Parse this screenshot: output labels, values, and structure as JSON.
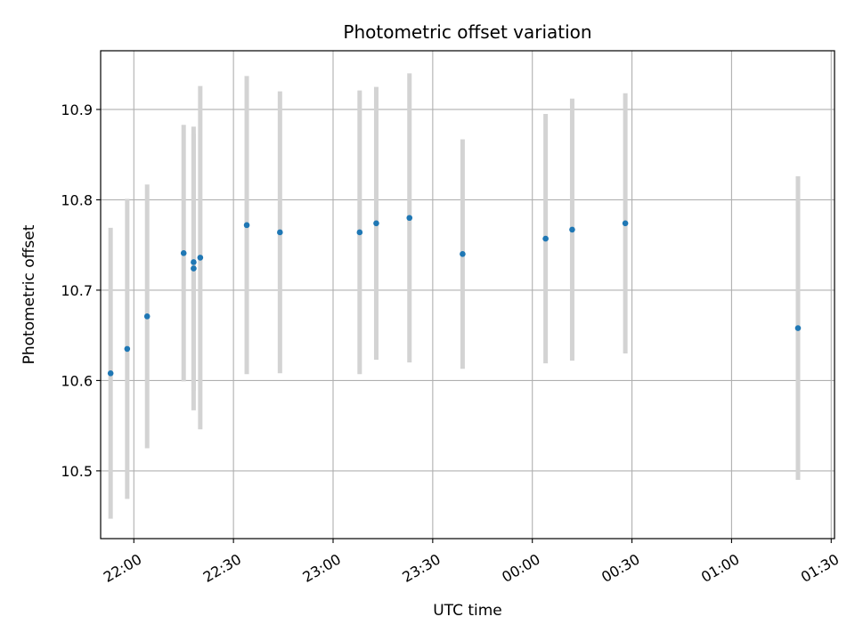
{
  "chart_data": {
    "type": "scatter",
    "title": "Photometric offset variation",
    "xlabel": "UTC time",
    "ylabel": "Photometric offset",
    "grid": true,
    "x_axis": "time",
    "xlim": [
      "21:50",
      "01:31"
    ],
    "ylim": [
      10.425,
      10.965
    ],
    "yticks": [
      10.5,
      10.6,
      10.7,
      10.8,
      10.9
    ],
    "xticks": [
      {
        "time": "22:00",
        "label": "22:00"
      },
      {
        "time": "22:30",
        "label": "22:30"
      },
      {
        "time": "23:00",
        "label": "23:00"
      },
      {
        "time": "23:30",
        "label": "23:30"
      },
      {
        "time": "00:00",
        "label": "00:00"
      },
      {
        "time": "00:30",
        "label": "00:30"
      },
      {
        "time": "01:00",
        "label": "01:00"
      },
      {
        "time": "01:30",
        "label": "01:30"
      }
    ],
    "marker_color": "#1f77b4",
    "errorbar_color": "#d3d3d3",
    "points": [
      {
        "x": "21:53",
        "y": 10.608,
        "yerr": 0.161
      },
      {
        "x": "21:58",
        "y": 10.635,
        "yerr": 0.166
      },
      {
        "x": "22:04",
        "y": 10.671,
        "yerr": 0.146
      },
      {
        "x": "22:15",
        "y": 10.741,
        "yerr": 0.142
      },
      {
        "x": "22:18",
        "y": 10.724,
        "yerr": 0.157
      },
      {
        "x": "22:18",
        "y": 10.731,
        "yerr": 0.142
      },
      {
        "x": "22:20",
        "y": 10.736,
        "yerr": 0.19
      },
      {
        "x": "22:34",
        "y": 10.772,
        "yerr": 0.165
      },
      {
        "x": "22:44",
        "y": 10.764,
        "yerr": 0.156
      },
      {
        "x": "23:08",
        "y": 10.764,
        "yerr": 0.157
      },
      {
        "x": "23:13",
        "y": 10.774,
        "yerr": 0.151
      },
      {
        "x": "23:23",
        "y": 10.78,
        "yerr": 0.16
      },
      {
        "x": "23:39",
        "y": 10.74,
        "yerr": 0.127
      },
      {
        "x": "00:04",
        "y": 10.757,
        "yerr": 0.138
      },
      {
        "x": "00:12",
        "y": 10.767,
        "yerr": 0.145
      },
      {
        "x": "00:28",
        "y": 10.774,
        "yerr": 0.144
      },
      {
        "x": "01:20",
        "y": 10.658,
        "yerr": 0.168
      }
    ]
  }
}
